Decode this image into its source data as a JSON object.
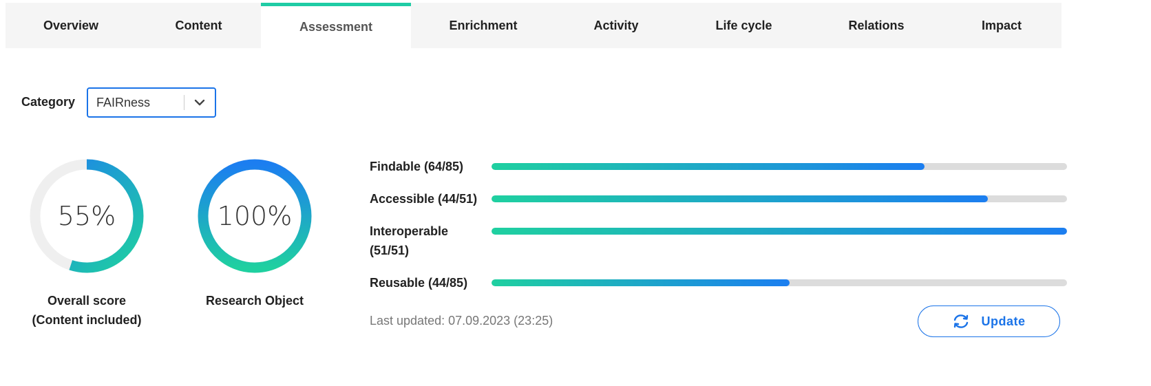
{
  "tabs": [
    {
      "label": "Overview",
      "active": false
    },
    {
      "label": "Content",
      "active": false
    },
    {
      "label": "Assessment",
      "active": true
    },
    {
      "label": "Enrichment",
      "active": false
    },
    {
      "label": "Activity",
      "active": false
    },
    {
      "label": "Life cycle",
      "active": false
    },
    {
      "label": "Relations",
      "active": false
    },
    {
      "label": "Impact",
      "active": false
    }
  ],
  "category": {
    "label": "Category",
    "selected": "FAIRness"
  },
  "scores": [
    {
      "value_text": "55%",
      "fraction": 0.55,
      "caption_line1": "Overall score",
      "caption_line2": "(Content included)"
    },
    {
      "value_text": "100%",
      "fraction": 1.0,
      "caption_line1": "Research Object",
      "caption_line2": ""
    }
  ],
  "bars": [
    {
      "label": "Findable (64/85)",
      "score": 64,
      "max": 85
    },
    {
      "label": "Accessible (44/51)",
      "score": 44,
      "max": 51
    },
    {
      "label": "Interoperable (51/51)",
      "score": 51,
      "max": 51
    },
    {
      "label": "Reusable (44/85)",
      "score": 44,
      "max": 85
    }
  ],
  "last_updated": "Last updated: 07.09.2023 (23:25)",
  "update_button": {
    "label": "Update",
    "icon": "refresh-icon"
  },
  "colors": {
    "accent_green": "#1fcca5",
    "accent_blue": "#1a73e8",
    "track": "#dcdcdc"
  }
}
